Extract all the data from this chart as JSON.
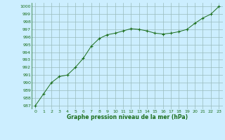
{
  "hours": [
    0,
    1,
    2,
    3,
    4,
    5,
    6,
    7,
    8,
    9,
    10,
    11,
    12,
    13,
    14,
    15,
    16,
    17,
    18,
    19,
    20,
    21,
    22,
    23
  ],
  "pressure": [
    987.0,
    988.5,
    990.0,
    990.8,
    991.0,
    992.0,
    993.2,
    994.8,
    995.8,
    996.3,
    996.5,
    996.8,
    997.1,
    997.0,
    996.8,
    996.5,
    996.4,
    996.5,
    996.7,
    997.0,
    997.8,
    998.5,
    999.0,
    1000.0
  ],
  "line_color": "#1a6e1a",
  "marker": "+",
  "marker_color": "#1a6e1a",
  "bg_color": "#cceeff",
  "grid_color": "#99bbbb",
  "xlabel": "Graphe pression niveau de la mer (hPa)",
  "xlabel_color": "#1a6e1a",
  "tick_color": "#1a6e1a",
  "ylim": [
    986.5,
    1000.5
  ],
  "xlim": [
    -0.5,
    23.5
  ],
  "yticks": [
    987,
    988,
    989,
    990,
    991,
    992,
    993,
    994,
    995,
    996,
    997,
    998,
    999,
    1000
  ],
  "xticks": [
    0,
    1,
    2,
    3,
    4,
    5,
    6,
    7,
    8,
    9,
    10,
    11,
    12,
    13,
    14,
    15,
    16,
    17,
    18,
    19,
    20,
    21,
    22,
    23
  ]
}
